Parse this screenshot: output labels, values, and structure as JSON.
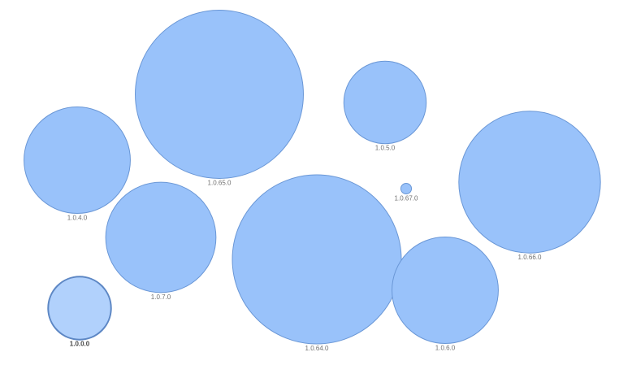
{
  "chart_data": {
    "type": "scatter",
    "bubbles": [
      {
        "label": "1.0.65.0",
        "size": 100,
        "selected": false
      },
      {
        "label": "1.0.5.0",
        "size": 24,
        "selected": false
      },
      {
        "label": "1.0.4.0",
        "size": 40,
        "selected": false
      },
      {
        "label": "1.0.67.0",
        "size": 0.4,
        "selected": false
      },
      {
        "label": "1.0.66.0",
        "size": 71,
        "selected": false
      },
      {
        "label": "1.0.7.0",
        "size": 43,
        "selected": false
      },
      {
        "label": "1.0.64.0",
        "size": 101,
        "selected": false
      },
      {
        "label": "1.0.6.0",
        "size": 40,
        "selected": false
      },
      {
        "label": "1.0.0.0",
        "size": 14,
        "selected": true
      }
    ],
    "colors": {
      "fill": "#99c2fa",
      "stroke": "#6a97d6",
      "selected_fill": "#b1d1fc",
      "selected_stroke": "#5d87c4",
      "label": "#707070"
    }
  }
}
